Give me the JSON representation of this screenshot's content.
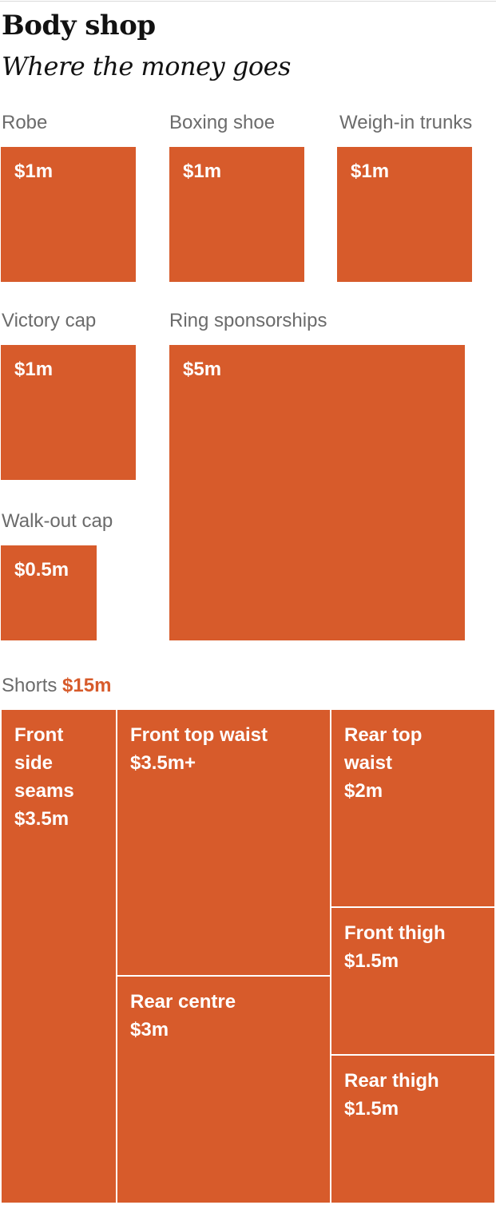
{
  "colors": {
    "accent": "#d75b2b",
    "label": "#6b6b6b",
    "title": "#121212",
    "divider": "#ffffff"
  },
  "header": {
    "title": "Body shop",
    "subtitle": "Where the money goes"
  },
  "chart_data": [
    {
      "type": "proportional-squares",
      "unit": "$m",
      "items": [
        {
          "name": "Robe",
          "value": 1,
          "value_label": "$1m"
        },
        {
          "name": "Boxing shoe",
          "value": 1,
          "value_label": "$1m"
        },
        {
          "name": "Weigh-in trunks",
          "value": 1,
          "value_label": "$1m"
        },
        {
          "name": "Victory cap",
          "value": 1,
          "value_label": "$1m"
        },
        {
          "name": "Ring sponsorships",
          "value": 5,
          "value_label": "$5m"
        },
        {
          "name": "Walk-out cap",
          "value": 0.5,
          "value_label": "$0.5m"
        }
      ]
    },
    {
      "type": "treemap",
      "label": "Shorts",
      "total_label": "$15m",
      "total": 15,
      "cells": [
        {
          "name": "Front side seams",
          "lines": [
            "Front",
            "side",
            "seams",
            "$3.5m"
          ],
          "value": 3.5
        },
        {
          "name": "Front top waist",
          "lines": [
            "Front top waist",
            "$3.5m+"
          ],
          "value": 3.5
        },
        {
          "name": "Rear centre",
          "lines": [
            "Rear centre",
            "$3m"
          ],
          "value": 3
        },
        {
          "name": "Rear top waist",
          "lines": [
            "Rear top",
            "waist",
            "$2m"
          ],
          "value": 2
        },
        {
          "name": "Front thigh",
          "lines": [
            "Front thigh",
            "$1.5m"
          ],
          "value": 1.5
        },
        {
          "name": "Rear thigh",
          "lines": [
            "Rear thigh",
            "$1.5m"
          ],
          "value": 1.5
        }
      ]
    }
  ]
}
